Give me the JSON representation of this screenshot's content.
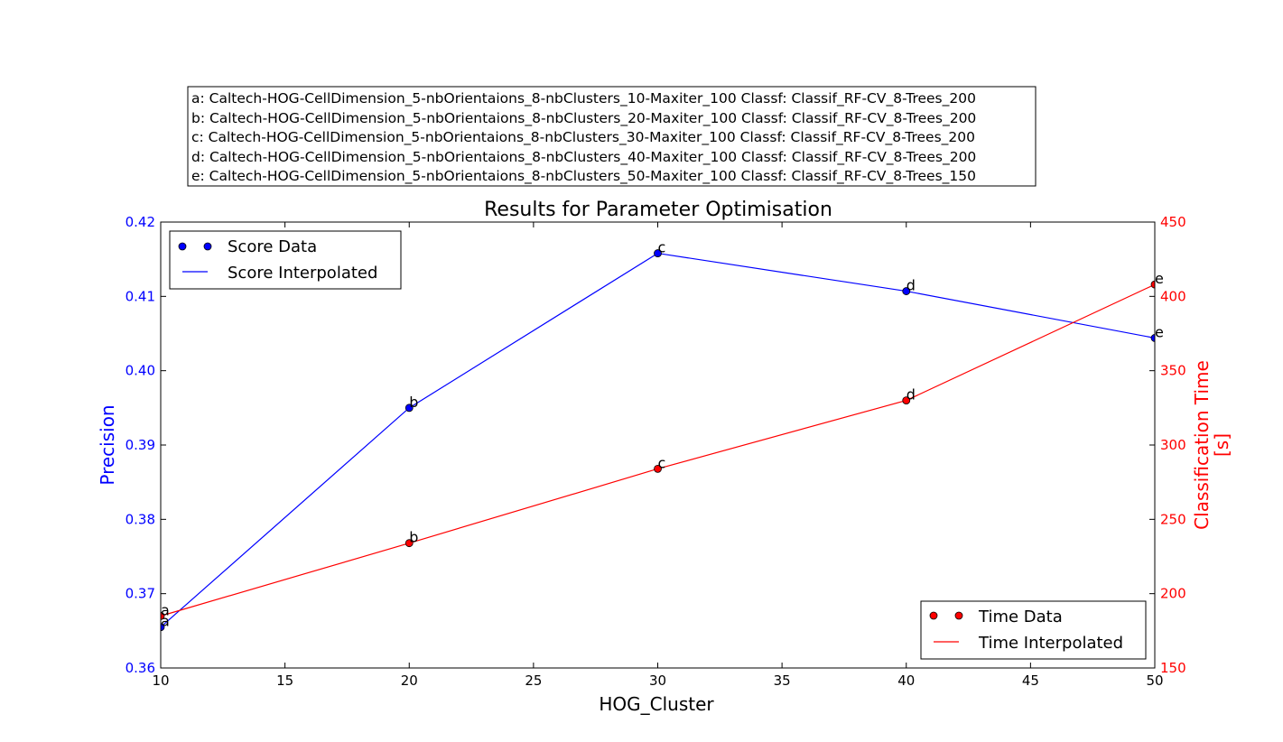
{
  "chart_data": {
    "type": "line",
    "title": "Results for Parameter Optimisation",
    "xlabel": "HOG_Cluster",
    "ylabel_left": "Precision",
    "ylabel_right_lines": [
      "Classification Time",
      "[s]"
    ],
    "x": [
      10,
      20,
      30,
      40,
      50
    ],
    "xlim": [
      10,
      50
    ],
    "x_ticks": [
      10,
      15,
      20,
      25,
      30,
      35,
      40,
      45,
      50
    ],
    "ylim_left": [
      0.36,
      0.42
    ],
    "y_ticks_left": [
      "0.36",
      "0.37",
      "0.38",
      "0.39",
      "0.40",
      "0.41",
      "0.42"
    ],
    "ylim_right": [
      150,
      450
    ],
    "y_ticks_right": [
      150,
      200,
      250,
      300,
      350,
      400,
      450
    ],
    "point_labels": [
      "a",
      "b",
      "c",
      "d",
      "e"
    ],
    "grid": false,
    "series": [
      {
        "name": "Score Data",
        "line_name": "Score Interpolated",
        "axis": "left",
        "color": "#0000ff",
        "values": [
          0.3655,
          0.395,
          0.4158,
          0.4107,
          0.4044
        ]
      },
      {
        "name": "Time Data",
        "line_name": "Time Interpolated",
        "axis": "right",
        "color": "#ff0000",
        "values": [
          185,
          234,
          284,
          330,
          408
        ]
      }
    ],
    "legend_left_placement": "top-left",
    "legend_right_placement": "bottom-right",
    "configurations": [
      "a: Caltech-HOG-CellDimension_5-nbOrientaions_8-nbClusters_10-Maxiter_100 Classf: Classif_RF-CV_8-Trees_200",
      "b: Caltech-HOG-CellDimension_5-nbOrientaions_8-nbClusters_20-Maxiter_100 Classf: Classif_RF-CV_8-Trees_200",
      "c: Caltech-HOG-CellDimension_5-nbOrientaions_8-nbClusters_30-Maxiter_100 Classf: Classif_RF-CV_8-Trees_200",
      "d: Caltech-HOG-CellDimension_5-nbOrientaions_8-nbClusters_40-Maxiter_100 Classf: Classif_RF-CV_8-Trees_200",
      "e: Caltech-HOG-CellDimension_5-nbOrientaions_8-nbClusters_50-Maxiter_100 Classf: Classif_RF-CV_8-Trees_150"
    ]
  }
}
